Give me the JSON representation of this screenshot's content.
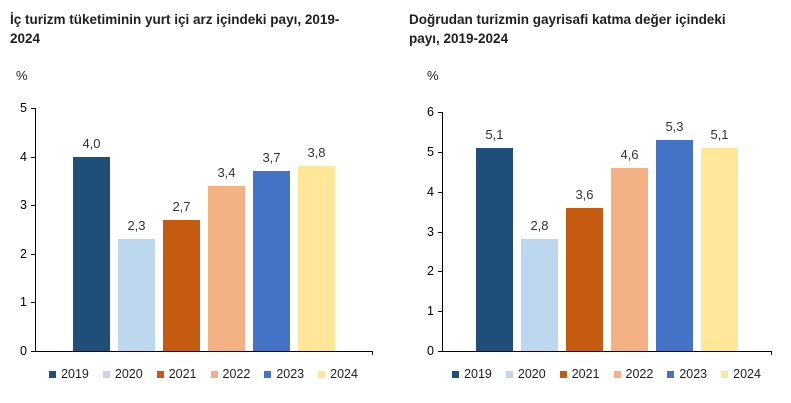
{
  "page": {
    "background": "#ffffff"
  },
  "chart_data": [
    {
      "type": "bar",
      "title": "İç turizm tüketiminin yurt içi arz içindeki payı, 2019-2024",
      "unit_label": "%",
      "categories": [
        "2019",
        "2020",
        "2021",
        "2022",
        "2023",
        "2024"
      ],
      "values": [
        4.0,
        2.3,
        2.7,
        3.4,
        3.7,
        3.8
      ],
      "value_labels": [
        "4,0",
        "2,3",
        "2,7",
        "3,4",
        "3,7",
        "3,8"
      ],
      "ylim": [
        0,
        5
      ],
      "ytick_values": [
        0,
        1,
        2,
        3,
        4,
        5
      ],
      "grid": false,
      "legend_position": "bottom",
      "colors": [
        "#1F4E79",
        "#BDD7EE",
        "#C55A11",
        "#F4B183",
        "#4472C4",
        "#FFE699"
      ]
    },
    {
      "type": "bar",
      "title": "Doğrudan turizmin gayrisafi katma değer içindeki payı, 2019-2024",
      "unit_label": "%",
      "categories": [
        "2019",
        "2020",
        "2021",
        "2022",
        "2023",
        "2024"
      ],
      "values": [
        5.1,
        2.8,
        3.6,
        4.6,
        5.3,
        5.1
      ],
      "value_labels": [
        "5,1",
        "2,8",
        "3,6",
        "4,6",
        "5,3",
        "5,1"
      ],
      "ylim": [
        0,
        6
      ],
      "ytick_values": [
        0,
        1,
        2,
        3,
        4,
        5,
        6
      ],
      "grid": false,
      "legend_position": "bottom",
      "colors": [
        "#1F4E79",
        "#BDD7EE",
        "#C55A11",
        "#F4B183",
        "#4472C4",
        "#FFE699"
      ]
    }
  ]
}
